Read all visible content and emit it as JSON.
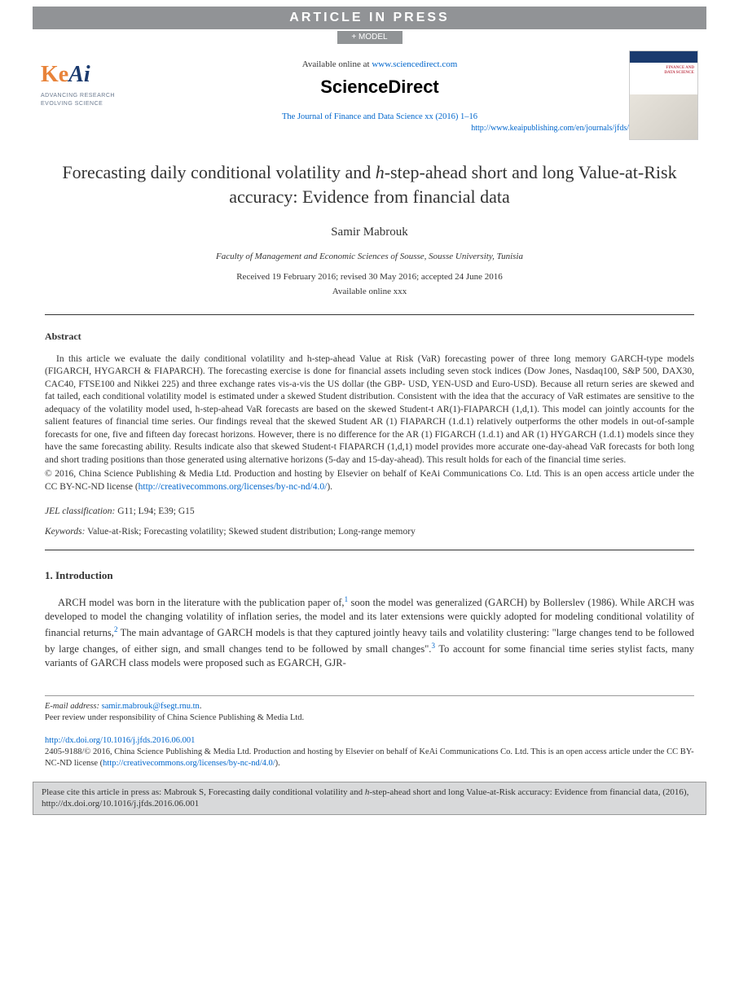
{
  "banner": {
    "aip": "ARTICLE IN PRESS",
    "model": "+ MODEL"
  },
  "header": {
    "available_prefix": "Available online at ",
    "available_url": "www.sciencedirect.com",
    "sd_logo": "ScienceDirect",
    "journal_ref": "The Journal of Finance and Data Science xx (2016) 1–16",
    "journal_url": "http://www.keaipublishing.com/en/journals/jfds/",
    "keai_tag1": "ADVANCING RESEARCH",
    "keai_tag2": "EVOLVING SCIENCE",
    "cover_title": "FINANCE AND\nDATA SCIENCE"
  },
  "article": {
    "title_pre": "Forecasting daily conditional volatility and ",
    "title_italic": "h",
    "title_post": "-step-ahead short and long Value-at-Risk accuracy: Evidence from financial data",
    "author": "Samir Mabrouk",
    "affiliation": "Faculty of Management and Economic Sciences of Sousse, Sousse University, Tunisia",
    "dates": "Received 19 February 2016; revised 30 May 2016; accepted 24 June 2016",
    "available": "Available online xxx"
  },
  "abstract": {
    "heading": "Abstract",
    "body": "In this article we evaluate the daily conditional volatility and h-step-ahead Value at Risk (VaR) forecasting power of three long memory GARCH-type models (FIGARCH, HYGARCH & FIAPARCH). The forecasting exercise is done for financial assets including seven stock indices (Dow Jones, Nasdaq100, S&P 500, DAX30, CAC40, FTSE100 and Nikkei 225) and three exchange rates vis-a-vis the US dollar (the GBP- USD, YEN-USD and Euro-USD). Because all return series are skewed and fat tailed, each conditional volatility model is estimated under a skewed Student distribution. Consistent with the idea that the accuracy of VaR estimates are sensitive to the adequacy of the volatility model used, h-step-ahead VaR forecasts are based on the skewed Student-t AR(1)-FIAPARCH (1,d,1). This model can jointly accounts for the salient features of financial time series. Our findings reveal that the skewed Student AR (1) FIAPARCH (1.d.1) relatively outperforms the other models in out-of-sample forecasts for one, five and fifteen day forecast horizons. However, there is no difference for the AR (1) FIGARCH (1.d.1) and AR (1) HYGARCH (1.d.1) models since they have the same forecasting ability. Results indicate also that skewed Student-t FIAPARCH (1,d,1) model provides more accurate one-day-ahead VaR forecasts for both long and short trading positions than those generated using alternative horizons (5-day and 15-day-ahead). This result holds for each of the financial time series.",
    "copyright_pre": "© 2016, China Science Publishing & Media Ltd. Production and hosting by Elsevier on behalf of KeAi Communications Co. Ltd. This is an open access article under the CC BY-NC-ND license (",
    "copyright_url": "http://creativecommons.org/licenses/by-nc-nd/4.0/",
    "copyright_post": ")."
  },
  "jel": {
    "label": "JEL classification:",
    "codes": " G11; L94; E39; G15"
  },
  "keywords": {
    "label": "Keywords:",
    "list": " Value-at-Risk; Forecasting volatility; Skewed student distribution; Long-range memory"
  },
  "intro": {
    "heading": "1. Introduction",
    "para_pre": "ARCH model was born in the literature with the publication paper of,",
    "sup1": "1",
    "para_mid1": " soon the model was generalized (GARCH) by Bollerslev (1986). While ARCH was developed to model the changing volatility of inflation series, the model and its later extensions were quickly adopted for modeling conditional volatility of financial returns,",
    "sup2": "2",
    "para_mid2": " The main advantage of GARCH models is that they captured jointly heavy tails and volatility clustering: \"large changes tend to be followed by large changes, of either sign, and small changes tend to be followed by small changes\".",
    "sup3": "3",
    "para_post": " To account for some financial time series stylist facts, many variants of GARCH class models were proposed such as EGARCH, GJR-"
  },
  "footer": {
    "email_label": "E-mail address: ",
    "email": "samir.mabrouk@fsegt.rnu.tn",
    "email_post": ".",
    "peer": "Peer review under responsibility of China Science Publishing & Media Ltd.",
    "doi": "http://dx.doi.org/10.1016/j.jfds.2016.06.001",
    "issn_pre": "2405-9188/© 2016, China Science Publishing & Media Ltd. Production and hosting by Elsevier on behalf of KeAi Communications Co. Ltd. This is an open access article under the CC BY-NC-ND license (",
    "issn_url": "http://creativecommons.org/licenses/by-nc-nd/4.0/",
    "issn_post": ")."
  },
  "citebox": {
    "pre": "Please cite this article in press as: Mabrouk S, Forecasting daily conditional volatility and ",
    "italic": "h",
    "post": "-step-ahead short and long Value-at-Risk accuracy: Evidence from financial data,  (2016), http://dx.doi.org/10.1016/j.jfds.2016.06.001"
  },
  "colors": {
    "banner_bg": "#919396",
    "link": "#0066cc",
    "keai_blue": "#1a3a6e",
    "keai_orange": "#e8833a",
    "text": "#333333",
    "citebox_bg": "#d8d9da"
  }
}
